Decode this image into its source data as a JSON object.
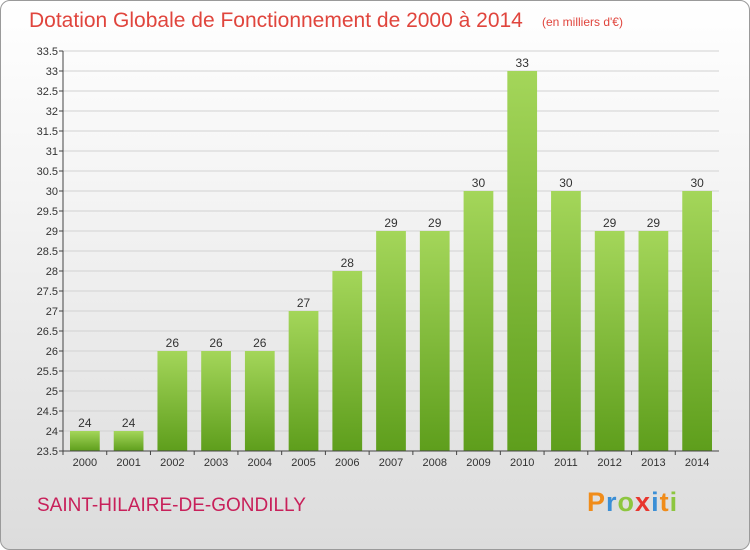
{
  "header": {
    "title": "Dotation Globale de Fonctionnement de 2000 à 2014",
    "unit": "(en milliers d'€)"
  },
  "footer": {
    "commune": "SAINT-HILAIRE-DE-GONDILLY",
    "logo_letters": [
      "P",
      "r",
      "o",
      "x",
      "i",
      "t",
      "i"
    ],
    "logo_colors": [
      "#f08c1a",
      "#3b8fd6",
      "#8dc63f",
      "#e8362e",
      "#3b8fd6",
      "#f08c1a",
      "#8dc63f"
    ]
  },
  "colors": {
    "bar_top": "#a4d65a",
    "bar_bottom": "#5e9e1c",
    "title": "#e0453d",
    "commune": "#c8205a"
  },
  "chart_data": {
    "type": "bar",
    "title": "Dotation Globale de Fonctionnement de 2000 à 2014",
    "subtitle": "(en milliers d'€)",
    "categories": [
      "2000",
      "2001",
      "2002",
      "2003",
      "2004",
      "2005",
      "2006",
      "2007",
      "2008",
      "2009",
      "2010",
      "2011",
      "2012",
      "2013",
      "2014"
    ],
    "values": [
      24,
      24,
      26,
      26,
      26,
      27,
      28,
      29,
      29,
      30,
      33,
      30,
      29,
      29,
      30
    ],
    "ylim": [
      23.5,
      33.5
    ],
    "yticks": [
      "23.5",
      "24",
      "24.5",
      "25",
      "25.5",
      "26",
      "26.5",
      "27",
      "27.5",
      "28",
      "28.5",
      "29",
      "29.5",
      "30",
      "30.5",
      "31",
      "31.5",
      "32",
      "32.5",
      "33",
      "33.5"
    ],
    "grid": true,
    "legend": "none"
  }
}
